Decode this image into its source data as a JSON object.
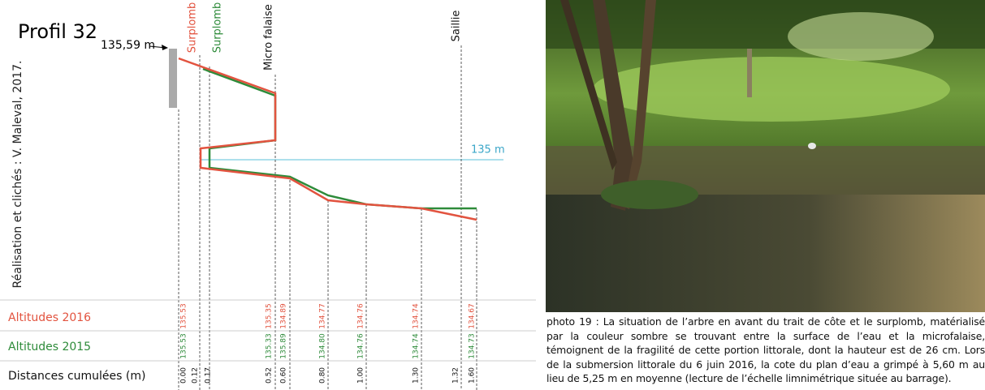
{
  "title": "Profil 32",
  "credit": "Réalisation et clichés : V. Maleval, 2017.",
  "labels": {
    "top_altitude": "135,59 m",
    "water_level": "135 m"
  },
  "annotations": [
    "Surplomb",
    "Surplomb",
    "Micro falaise",
    "Saillie"
  ],
  "table": {
    "row_labels": [
      "Altitudes 2016",
      "Altitudes 2015",
      "Distances cumulées (m)"
    ],
    "columns": [
      {
        "distance": "0.00",
        "alt_2016": "135.53",
        "alt_2015": "135.53"
      },
      {
        "distance": "0.12"
      },
      {
        "distance": "0.17"
      },
      {
        "distance": "0.52",
        "alt_2016": "135.35",
        "alt_2015": "135.33"
      },
      {
        "distance": "0.60",
        "alt_2016": "134.89",
        "alt_2015": "135.89"
      },
      {
        "distance": "0.80",
        "alt_2016": "134.77",
        "alt_2015": "134.80"
      },
      {
        "distance": "1.00",
        "alt_2016": "134.76",
        "alt_2015": "134.76"
      },
      {
        "distance": "1.30",
        "alt_2016": "134.74",
        "alt_2015": "134.74"
      },
      {
        "distance": "1.32"
      },
      {
        "distance": "1.60",
        "alt_2016": "134.67",
        "alt_2015": "134.73"
      }
    ]
  },
  "caption": "photo 19 : La situation de l’arbre en avant du trait de côte et le surplomb, matérialisé par la couleur sombre se trouvant entre la surface de l’eau et la microfalaise, témoignent de la fragilité de cette portion littorale, dont la hauteur est de 26 cm. Lors de la submersion littorale du 6 juin 2016, la cote du plan d’eau a grimpé à 5,60 m au lieu de 5,25 m en moyenne (lecture de l’échelle limnimétrique située au barrage)."
}
